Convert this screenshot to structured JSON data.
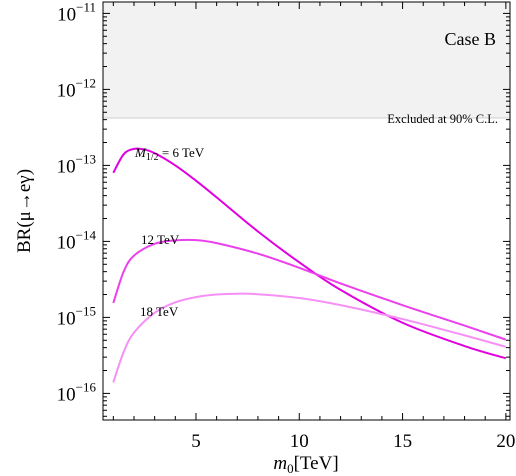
{
  "chart_data": {
    "type": "line",
    "xlabel_base": "m",
    "xlabel_sub": "0",
    "xlabel_unit": "[TeV]",
    "ylabel": "BR(μ→eγ)",
    "xlim": [
      0.5,
      20.2
    ],
    "ylim_log10": [
      -16.35,
      -10.85
    ],
    "yscale": "log",
    "x_ticks": [
      5,
      10,
      15,
      20
    ],
    "y_tick_exponents": [
      -16,
      -15,
      -14,
      -13,
      -12,
      -11
    ],
    "case_label": "Case B",
    "excluded_label": "Excluded at 90% C.L.",
    "excluded_from": 4.2e-13,
    "series": [
      {
        "label_prefix": "M",
        "label_sub": "1/2",
        "label_suffix": " = 6 TeV",
        "color": "#e000e0",
        "x": [
          1,
          1.5,
          2,
          2.5,
          3,
          4,
          5,
          6,
          8,
          10,
          12,
          15,
          18,
          20
        ],
        "y": [
          8e-14,
          1.4e-13,
          1.65e-13,
          1.62e-13,
          1.45e-13,
          1e-13,
          6.3e-14,
          3.8e-14,
          1.35e-14,
          5.3e-15,
          2.3e-15,
          8.5e-16,
          4.2e-16,
          2.9e-16
        ]
      },
      {
        "label": "12 TeV",
        "color": "#ec40ec",
        "x": [
          1,
          1.5,
          2,
          3,
          4,
          5,
          6,
          8,
          10,
          12,
          15,
          18,
          20
        ],
        "y": [
          1.55e-15,
          4e-15,
          6.5e-15,
          9.3e-15,
          1.03e-14,
          1.04e-14,
          9.5e-15,
          6.9e-15,
          4.5e-15,
          2.8e-15,
          1.45e-15,
          7.8e-16,
          5.1e-16
        ]
      },
      {
        "label": "18 TeV",
        "color": "#f590f5",
        "x": [
          1,
          1.5,
          2,
          3,
          4,
          5,
          6,
          7,
          8,
          10,
          12,
          15,
          18,
          20
        ],
        "y": [
          1.4e-16,
          3.5e-16,
          6.3e-16,
          1.15e-15,
          1.58e-15,
          1.85e-15,
          2e-15,
          2.05e-15,
          2.02e-15,
          1.8e-15,
          1.45e-15,
          9.5e-16,
          5.8e-16,
          4.1e-16
        ]
      }
    ]
  }
}
